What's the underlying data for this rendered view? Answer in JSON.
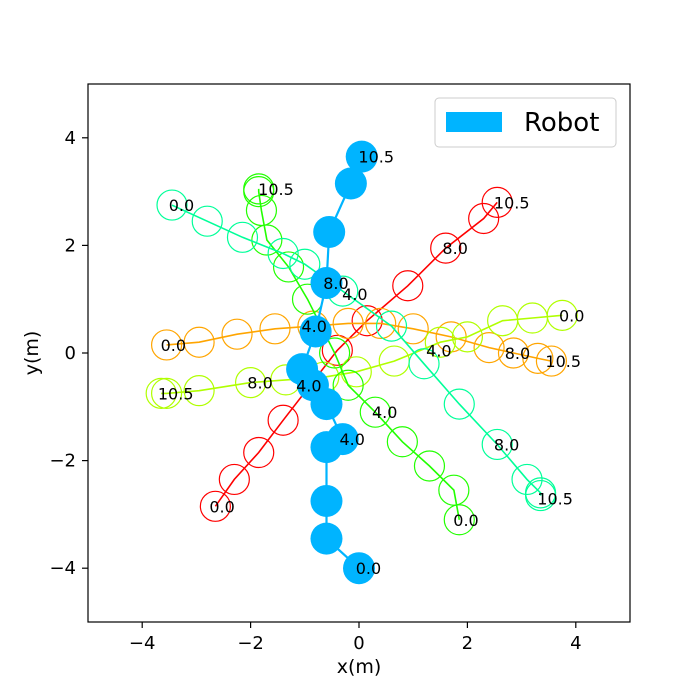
{
  "chart_data": {
    "type": "scatter",
    "title": "",
    "xlabel": "x(m)",
    "ylabel": "y(m)",
    "xlim": [
      -5,
      5
    ],
    "ylim": [
      -5,
      5
    ],
    "xticks": [
      -4,
      -2,
      0,
      2,
      4
    ],
    "yticks": [
      -4,
      -2,
      0,
      2,
      4
    ],
    "grid": false,
    "legend": {
      "placement": "top-right",
      "entries": [
        {
          "label": "Robot",
          "color": "#00b4ff"
        }
      ]
    },
    "robot_color": "#00b4ff",
    "robot": {
      "points": [
        [
          0.0,
          -4.0
        ],
        [
          -0.6,
          -3.45
        ],
        [
          -0.6,
          -2.75
        ],
        [
          -0.6,
          -1.75
        ],
        [
          -0.3,
          -1.6
        ],
        [
          -0.6,
          -0.95
        ],
        [
          -0.85,
          -0.6
        ],
        [
          -1.05,
          -0.3
        ],
        [
          -0.8,
          0.4
        ],
        [
          -0.6,
          1.3
        ],
        [
          -0.55,
          2.25
        ],
        [
          -0.15,
          3.15
        ],
        [
          0.05,
          3.65
        ]
      ],
      "labels": [
        {
          "text": "0.0",
          "x": 0.05,
          "y": -4.0
        },
        {
          "text": "4.0",
          "x": -0.25,
          "y": -1.6
        },
        {
          "text": "8.0",
          "x": -0.55,
          "y": 1.3
        },
        {
          "text": "10.5",
          "x": 0.1,
          "y": 3.65
        }
      ]
    },
    "agents": [
      {
        "color": "#ff0000",
        "points": [
          [
            -2.65,
            -2.85
          ],
          [
            -2.3,
            -2.35
          ],
          [
            -1.85,
            -1.85
          ],
          [
            -1.4,
            -1.25
          ],
          [
            -0.4,
            0.05
          ],
          [
            0.15,
            0.6
          ],
          [
            0.9,
            1.25
          ],
          [
            1.6,
            1.95
          ],
          [
            2.3,
            2.5
          ],
          [
            2.55,
            2.8
          ]
        ],
        "labels": [
          {
            "text": "0.0",
            "x": -2.65,
            "y": -2.85
          },
          {
            "text": "8.0",
            "x": 1.65,
            "y": 1.95
          },
          {
            "text": "10.5",
            "x": 2.6,
            "y": 2.8
          }
        ]
      },
      {
        "color": "#ffa500",
        "points": [
          [
            -3.55,
            0.15
          ],
          [
            -2.95,
            0.2
          ],
          [
            -2.25,
            0.35
          ],
          [
            -1.55,
            0.45
          ],
          [
            -0.85,
            0.5
          ],
          [
            -0.2,
            0.55
          ],
          [
            0.4,
            0.55
          ],
          [
            1.0,
            0.45
          ],
          [
            1.7,
            0.3
          ],
          [
            2.4,
            0.1
          ],
          [
            2.85,
            0.0
          ],
          [
            3.3,
            -0.1
          ],
          [
            3.55,
            -0.15
          ]
        ],
        "labels": [
          {
            "text": "0.0",
            "x": -3.55,
            "y": 0.15
          },
          {
            "text": "8.0",
            "x": 2.8,
            "y": 0.0
          },
          {
            "text": "10.5",
            "x": 3.55,
            "y": -0.15
          }
        ]
      },
      {
        "color": "#b0ff00",
        "points": [
          [
            3.75,
            0.7
          ],
          [
            3.2,
            0.65
          ],
          [
            2.65,
            0.6
          ],
          [
            2.0,
            0.3
          ],
          [
            1.5,
            0.2
          ],
          [
            0.65,
            -0.15
          ],
          [
            -0.05,
            -0.35
          ],
          [
            -0.65,
            -0.45
          ],
          [
            -1.35,
            -0.5
          ],
          [
            -2.0,
            -0.55
          ],
          [
            -2.95,
            -0.7
          ],
          [
            -3.55,
            -0.75
          ],
          [
            -3.65,
            -0.75
          ]
        ],
        "labels": [
          {
            "text": "0.0",
            "x": 3.8,
            "y": 0.7
          },
          {
            "text": "4.0",
            "x": 1.35,
            "y": 0.05
          },
          {
            "text": "8.0",
            "x": -1.95,
            "y": -0.55
          },
          {
            "text": "10.5",
            "x": -3.6,
            "y": -0.75
          }
        ]
      },
      {
        "color": "#22ff00",
        "points": [
          [
            1.85,
            -3.1
          ],
          [
            1.75,
            -2.55
          ],
          [
            1.3,
            -2.1
          ],
          [
            0.8,
            -1.65
          ],
          [
            0.3,
            -1.1
          ],
          [
            -0.2,
            -0.6
          ],
          [
            -0.45,
            0.0
          ],
          [
            -0.95,
            1.0
          ],
          [
            -1.3,
            1.6
          ],
          [
            -1.7,
            2.1
          ],
          [
            -1.8,
            2.65
          ],
          [
            -1.85,
            3.0
          ],
          [
            -1.85,
            3.05
          ]
        ],
        "labels": [
          {
            "text": "0.0",
            "x": 1.85,
            "y": -3.1
          },
          {
            "text": "4.0",
            "x": 0.35,
            "y": -1.1
          },
          {
            "text": "10.5",
            "x": -1.75,
            "y": 3.05
          }
        ]
      },
      {
        "color": "#00ff99",
        "points": [
          [
            -3.45,
            2.75
          ],
          [
            -2.8,
            2.45
          ],
          [
            -2.15,
            2.15
          ],
          [
            -1.4,
            1.85
          ],
          [
            -1.0,
            1.65
          ],
          [
            -0.3,
            1.15
          ],
          [
            0.6,
            0.5
          ],
          [
            1.2,
            -0.2
          ],
          [
            1.85,
            -0.95
          ],
          [
            2.55,
            -1.7
          ],
          [
            3.1,
            -2.35
          ],
          [
            3.35,
            -2.6
          ],
          [
            3.35,
            -2.65
          ]
        ],
        "labels": [
          {
            "text": "0.0",
            "x": -3.4,
            "y": 2.75
          },
          {
            "text": "4.0",
            "x": -0.2,
            "y": 1.1
          },
          {
            "text": "8.0",
            "x": 2.6,
            "y": -1.7
          },
          {
            "text": "10.5",
            "x": 3.4,
            "y": -2.7
          }
        ]
      }
    ],
    "extra_labels": [
      {
        "text": "4.0",
        "x": -0.95,
        "y": 0.5
      },
      {
        "text": "4.0",
        "x": -1.05,
        "y": -0.6
      }
    ]
  }
}
